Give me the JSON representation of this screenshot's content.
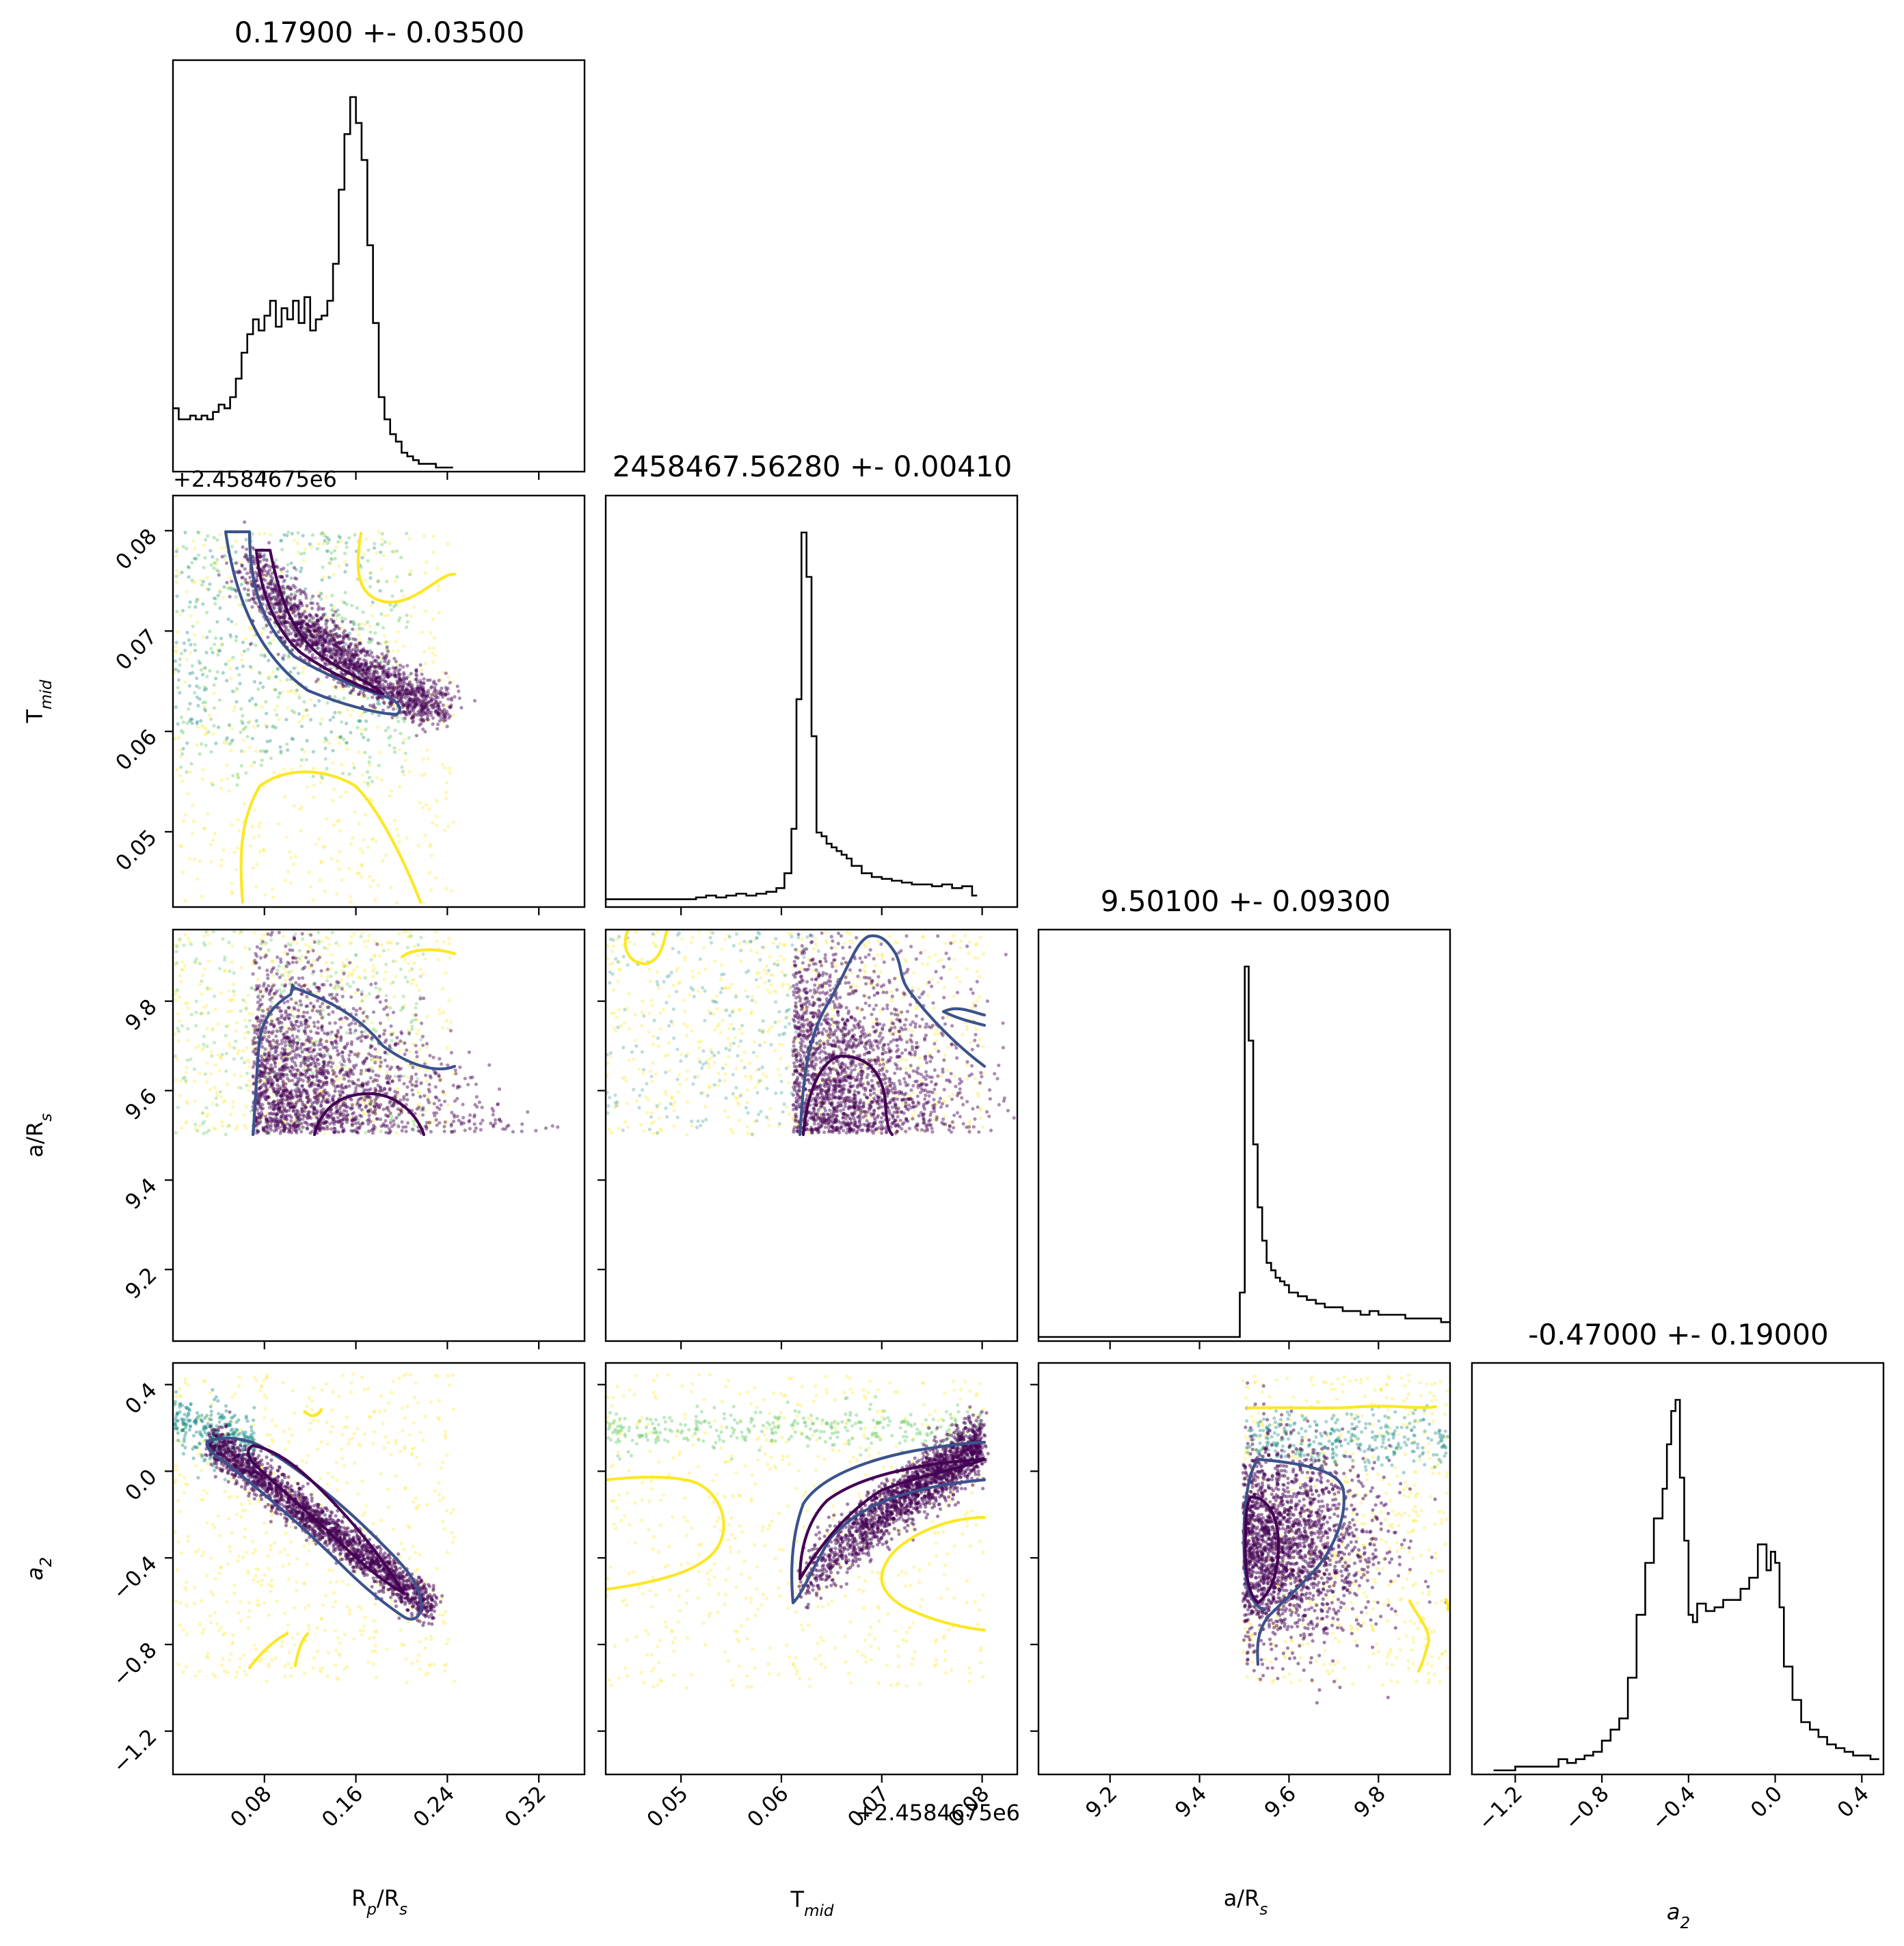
{
  "chart_data": {
    "type": "scatter",
    "subtype": "corner",
    "parameters": [
      {
        "key": "rp",
        "label_base": "R",
        "label_sub": "p",
        "label_tail": "/R",
        "label_tail_sub": "s"
      },
      {
        "key": "tmid",
        "label_base": "T",
        "label_sub": "mid",
        "label_tail": "",
        "label_tail_sub": ""
      },
      {
        "key": "ars",
        "label_base": "a/R",
        "label_sub": "s",
        "label_tail": "",
        "label_tail_sub": ""
      },
      {
        "key": "a2",
        "label_base": "a",
        "label_sub": "2",
        "label_tail": "",
        "label_tail_sub": "",
        "italic": true
      }
    ],
    "titles": [
      "0.17900 +- 0.03500",
      "2458467.56280 +- 0.00410",
      "9.50100 +- 0.09300",
      "-0.47000 +- 0.19000"
    ],
    "axis_offset_text": "+2.4584675e6",
    "ranges": {
      "rp": [
        0.0,
        0.36
      ],
      "tmid": [
        0.0425,
        0.0835
      ],
      "ars": [
        9.04,
        9.96
      ],
      "a2": [
        -1.4,
        0.5
      ]
    },
    "ticks": {
      "rp": {
        "values": [
          0.08,
          0.16,
          0.24,
          0.32
        ],
        "labels": [
          "0.08",
          "0.16",
          "0.24",
          "0.32"
        ]
      },
      "tmid": {
        "values": [
          0.05,
          0.06,
          0.07,
          0.08
        ],
        "labels": [
          "0.05",
          "0.06",
          "0.07",
          "0.08"
        ]
      },
      "ars": {
        "values": [
          9.2,
          9.4,
          9.6,
          9.8
        ],
        "labels": [
          "9.2",
          "9.4",
          "9.6",
          "9.8"
        ]
      },
      "a2": {
        "values": [
          -1.2,
          -0.8,
          -0.4,
          0.0,
          0.4
        ],
        "labels": [
          "−1.2",
          "−0.8",
          "−0.4",
          "0.0",
          "0.4"
        ]
      }
    },
    "sample_bounds": {
      "rp": [
        0.0,
        0.245
      ],
      "tmid": [
        0.0425,
        0.0795
      ],
      "ars": [
        9.501,
        9.96
      ],
      "a2": [
        -0.98,
        0.48
      ]
    },
    "histograms": {
      "rp": {
        "bins": [
          0.0,
          0.005,
          0.01,
          0.015,
          0.02,
          0.025,
          0.03,
          0.035,
          0.04,
          0.045,
          0.05,
          0.055,
          0.06,
          0.065,
          0.07,
          0.075,
          0.08,
          0.085,
          0.09,
          0.095,
          0.1,
          0.105,
          0.11,
          0.115,
          0.12,
          0.125,
          0.13,
          0.135,
          0.14,
          0.145,
          0.15,
          0.155,
          0.16,
          0.165,
          0.17,
          0.175,
          0.18,
          0.185,
          0.19,
          0.195,
          0.2,
          0.205,
          0.21,
          0.215,
          0.22,
          0.225,
          0.23,
          0.235,
          0.24,
          0.245
        ],
        "counts": [
          0.16,
          0.13,
          0.13,
          0.14,
          0.13,
          0.14,
          0.13,
          0.15,
          0.17,
          0.16,
          0.19,
          0.24,
          0.31,
          0.36,
          0.4,
          0.37,
          0.41,
          0.45,
          0.38,
          0.43,
          0.4,
          0.45,
          0.39,
          0.46,
          0.37,
          0.4,
          0.41,
          0.45,
          0.55,
          0.75,
          0.9,
          1.0,
          0.93,
          0.83,
          0.6,
          0.39,
          0.19,
          0.13,
          0.09,
          0.07,
          0.04,
          0.03,
          0.02,
          0.01,
          0.01,
          0.01,
          0.0,
          0.0,
          0.0
        ]
      },
      "tmid": {
        "bins": [
          0.0425,
          0.0435,
          0.0445,
          0.0455,
          0.0465,
          0.0475,
          0.0485,
          0.0495,
          0.0505,
          0.0515,
          0.0525,
          0.0535,
          0.0545,
          0.0555,
          0.0565,
          0.0575,
          0.0585,
          0.0595,
          0.0603,
          0.061,
          0.0615,
          0.062,
          0.0625,
          0.063,
          0.0635,
          0.064,
          0.0645,
          0.065,
          0.0655,
          0.066,
          0.0665,
          0.067,
          0.068,
          0.069,
          0.07,
          0.071,
          0.072,
          0.073,
          0.074,
          0.075,
          0.076,
          0.077,
          0.078,
          0.079,
          0.0795
        ],
        "counts": [
          0.01,
          0.01,
          0.01,
          0.01,
          0.01,
          0.01,
          0.01,
          0.01,
          0.01,
          0.015,
          0.02,
          0.015,
          0.02,
          0.025,
          0.02,
          0.025,
          0.03,
          0.04,
          0.08,
          0.2,
          0.55,
          1.0,
          0.88,
          0.45,
          0.19,
          0.18,
          0.16,
          0.15,
          0.14,
          0.13,
          0.12,
          0.1,
          0.08,
          0.07,
          0.065,
          0.06,
          0.055,
          0.05,
          0.05,
          0.045,
          0.05,
          0.04,
          0.045,
          0.02
        ]
      },
      "ars": {
        "bins": [
          9.04,
          9.49,
          9.501,
          9.51,
          9.52,
          9.53,
          9.54,
          9.55,
          9.56,
          9.57,
          9.58,
          9.59,
          9.6,
          9.62,
          9.64,
          9.66,
          9.68,
          9.7,
          9.72,
          9.74,
          9.76,
          9.78,
          9.8,
          9.82,
          9.84,
          9.86,
          9.88,
          9.9,
          9.92,
          9.94,
          9.96
        ],
        "counts": [
          0.0,
          0.12,
          1.0,
          0.8,
          0.52,
          0.35,
          0.26,
          0.2,
          0.18,
          0.16,
          0.15,
          0.14,
          0.12,
          0.11,
          0.1,
          0.09,
          0.08,
          0.08,
          0.07,
          0.07,
          0.06,
          0.07,
          0.06,
          0.06,
          0.06,
          0.05,
          0.05,
          0.05,
          0.05,
          0.04
        ]
      },
      "a2": {
        "bins": [
          -1.3,
          -1.2,
          -1.0,
          -0.96,
          -0.92,
          -0.88,
          -0.84,
          -0.8,
          -0.76,
          -0.72,
          -0.68,
          -0.64,
          -0.6,
          -0.56,
          -0.52,
          -0.5,
          -0.48,
          -0.46,
          -0.44,
          -0.42,
          -0.4,
          -0.38,
          -0.36,
          -0.32,
          -0.28,
          -0.24,
          -0.2,
          -0.16,
          -0.12,
          -0.08,
          -0.04,
          -0.02,
          0.0,
          0.02,
          0.04,
          0.08,
          0.12,
          0.16,
          0.2,
          0.24,
          0.28,
          0.32,
          0.36,
          0.4,
          0.44,
          0.48
        ],
        "counts": [
          0.0,
          0.01,
          0.03,
          0.02,
          0.03,
          0.04,
          0.05,
          0.08,
          0.11,
          0.14,
          0.25,
          0.42,
          0.56,
          0.68,
          0.76,
          0.88,
          0.97,
          1.0,
          0.79,
          0.62,
          0.42,
          0.4,
          0.45,
          0.43,
          0.44,
          0.46,
          0.46,
          0.49,
          0.52,
          0.61,
          0.54,
          0.59,
          0.56,
          0.44,
          0.28,
          0.19,
          0.13,
          0.11,
          0.09,
          0.07,
          0.06,
          0.05,
          0.04,
          0.04,
          0.03
        ]
      }
    },
    "contour_levels": [
      "inner",
      "outer",
      "outermost"
    ],
    "colors": {
      "inner": "#440154",
      "mid": "#3b528b",
      "teal": "#21918c",
      "green": "#5ec962",
      "yellow": "#fde725",
      "axes": "#000000"
    }
  }
}
